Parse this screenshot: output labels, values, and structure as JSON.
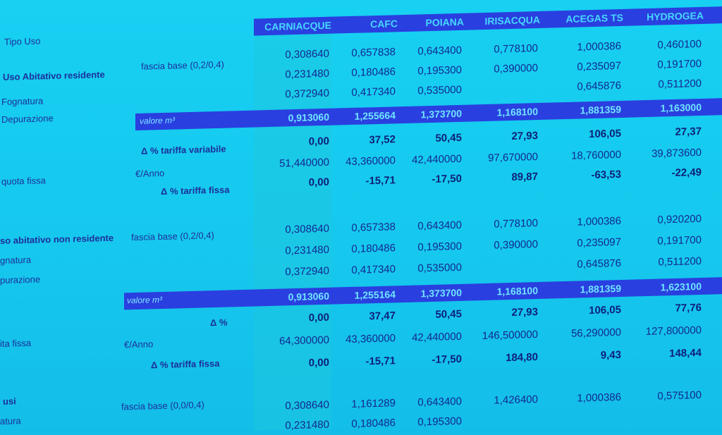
{
  "header": {
    "tipo_uso": "Tipo Uso",
    "companies": [
      "CARNIACQUE",
      "CAFC",
      "POIANA",
      "IRISACQUA",
      "ACEGAS TS",
      "HYDROGEA"
    ]
  },
  "section1": {
    "title": "Uso Abitativo residente",
    "labels": [
      "Fognatura",
      "Depurazione"
    ],
    "fascia": "fascia base (0,2/0,4)",
    "rows": [
      [
        "0,308640",
        "0,657838",
        "0,643400",
        "0,778100",
        "1,000386",
        "0,460100"
      ],
      [
        "0,231480",
        "0,180486",
        "0,195300",
        "0,390000",
        "0,235097",
        "0,191700"
      ],
      [
        "0,372940",
        "0,417340",
        "0,535000",
        "",
        "0,645876",
        "0,511200"
      ]
    ],
    "band_label": "valore m³",
    "band_values": [
      "0,913060",
      "1,255664",
      "1,373700",
      "1,168100",
      "1,881359",
      "1,163000"
    ],
    "delta_var_label": "Δ % tariffa variabile",
    "delta_var": [
      "0,00",
      "37,52",
      "50,45",
      "27,93",
      "106,05",
      "27,37"
    ],
    "quota_label": "quota fissa",
    "euro_label": "€/Anno",
    "euro_values": [
      "51,440000",
      "43,360000",
      "42,440000",
      "97,670000",
      "18,760000",
      "39,873600"
    ],
    "delta_fissa_label": "Δ % tariffa fissa",
    "delta_fissa": [
      "0,00",
      "-15,71",
      "-17,50",
      "89,87",
      "-63,53",
      "-22,49"
    ]
  },
  "section2": {
    "title": "so abitativo non residente",
    "labels": [
      "gnatura",
      "purazione"
    ],
    "fascia": "fascia base (0,2/0,4)",
    "rows": [
      [
        "0,308640",
        "0,657338",
        "0,643400",
        "0,778100",
        "1,000386",
        "0,920200"
      ],
      [
        "0,231480",
        "0,180486",
        "0,195300",
        "0,390000",
        "0,235097",
        "0,191700"
      ],
      [
        "0,372940",
        "0,417340",
        "0,535000",
        "",
        "0,645876",
        "0,511200"
      ]
    ],
    "band_label": "valore m³",
    "band_values": [
      "0,913060",
      "1,255164",
      "1,373700",
      "1,168100",
      "1,881359",
      "1,623100"
    ],
    "delta_label": "Δ %",
    "delta": [
      "0,00",
      "37,47",
      "50,45",
      "27,93",
      "106,05",
      "77,76"
    ],
    "quota_label": "ita fissa",
    "euro_label": "€/Anno",
    "euro_values": [
      "64,300000",
      "43,360000",
      "42,440000",
      "146,500000",
      "56,290000",
      "127,800000"
    ],
    "delta_fissa_label": "Δ % tariffa fissa",
    "delta_fissa": [
      "0,00",
      "-15,71",
      "-17,50",
      "184,80",
      "9,43",
      "148,44"
    ]
  },
  "section3": {
    "title": "usi",
    "labels": [
      "atura"
    ],
    "fascia": "fascia base (0,0/0,4)",
    "rows": [
      [
        "0,308640",
        "1,161289",
        "0,643400",
        "1,426400",
        "1,000386",
        "0,575100"
      ],
      [
        "0,231480",
        "0,180486",
        "0,195300",
        "",
        "",
        ""
      ]
    ]
  }
}
